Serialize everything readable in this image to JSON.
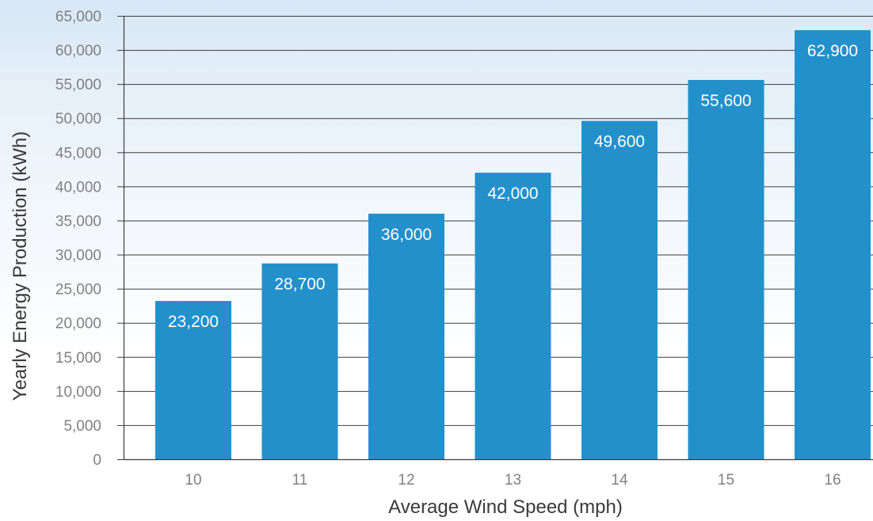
{
  "chart_data": {
    "type": "bar",
    "title": "",
    "xlabel": "Average Wind Speed (mph)",
    "ylabel": "Yearly Energy Production (kWh)",
    "categories": [
      "10",
      "11",
      "12",
      "13",
      "14",
      "15",
      "16"
    ],
    "values": [
      23200,
      28700,
      36000,
      42000,
      49600,
      55600,
      62900
    ],
    "data_labels": [
      "23,200",
      "28,700",
      "36,000",
      "42,000",
      "49,600",
      "55,600",
      "62,900"
    ],
    "ylim": [
      0,
      65000
    ],
    "yticks": [
      0,
      5000,
      10000,
      15000,
      20000,
      25000,
      30000,
      35000,
      40000,
      45000,
      50000,
      55000,
      60000,
      65000
    ],
    "ytick_labels": [
      "0",
      "5,000",
      "10,000",
      "15,000",
      "20,000",
      "25,000",
      "30,000",
      "35,000",
      "40,000",
      "45,000",
      "50,000",
      "55,000",
      "60,000",
      "65,000"
    ],
    "grid": true,
    "legend": "none",
    "bar_color": "#2390cc",
    "grid_color": "#3d3d3d"
  }
}
